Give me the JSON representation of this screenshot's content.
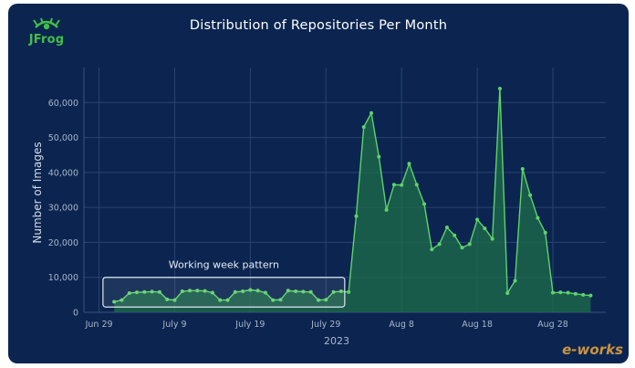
{
  "header": {
    "logo_text": "JFrog",
    "title": "Distribution of Repositories Per Month"
  },
  "watermark": {
    "text": "e-works"
  },
  "chart_data": {
    "type": "area",
    "title": "Distribution of Repositories Per Month",
    "xlabel": "2023",
    "ylabel": "Number of Images",
    "ylim": [
      0,
      70000
    ],
    "yticks": [
      0,
      10000,
      20000,
      30000,
      40000,
      50000,
      60000
    ],
    "ytick_labels": [
      "0",
      "10,000",
      "20,000",
      "30,000",
      "40,000",
      "50,000",
      "60,000"
    ],
    "xticks": [
      "2023-06-29",
      "2023-07-09",
      "2023-07-19",
      "2023-07-29",
      "2023-08-08",
      "2023-08-18",
      "2023-08-28"
    ],
    "xtick_labels": [
      "Jun 29",
      "July 9",
      "July 19",
      "July 29",
      "Aug 8",
      "Aug 18",
      "Aug 28"
    ],
    "xlim": [
      "2023-06-27",
      "2023-09-04"
    ],
    "grid": true,
    "series": [
      {
        "color": "#5fd36a",
        "x": [
          "2023-07-01",
          "2023-07-02",
          "2023-07-03",
          "2023-07-04",
          "2023-07-05",
          "2023-07-06",
          "2023-07-07",
          "2023-07-08",
          "2023-07-09",
          "2023-07-10",
          "2023-07-11",
          "2023-07-12",
          "2023-07-13",
          "2023-07-14",
          "2023-07-15",
          "2023-07-16",
          "2023-07-17",
          "2023-07-18",
          "2023-07-19",
          "2023-07-20",
          "2023-07-21",
          "2023-07-22",
          "2023-07-23",
          "2023-07-24",
          "2023-07-25",
          "2023-07-26",
          "2023-07-27",
          "2023-07-28",
          "2023-07-29",
          "2023-07-30",
          "2023-07-31",
          "2023-08-01",
          "2023-08-02",
          "2023-08-03",
          "2023-08-04",
          "2023-08-05",
          "2023-08-06",
          "2023-08-07",
          "2023-08-08",
          "2023-08-09",
          "2023-08-10",
          "2023-08-11",
          "2023-08-12",
          "2023-08-13",
          "2023-08-14",
          "2023-08-15",
          "2023-08-16",
          "2023-08-17",
          "2023-08-18",
          "2023-08-19",
          "2023-08-20",
          "2023-08-21",
          "2023-08-22",
          "2023-08-23",
          "2023-08-24",
          "2023-08-25",
          "2023-08-26",
          "2023-08-27",
          "2023-08-28",
          "2023-08-29",
          "2023-08-30",
          "2023-08-31",
          "2023-09-01",
          "2023-09-02"
        ],
        "values": [
          3000,
          3500,
          5500,
          5700,
          5800,
          5900,
          5800,
          3700,
          3500,
          6000,
          6200,
          6200,
          6100,
          5600,
          3500,
          3500,
          5800,
          6000,
          6400,
          6200,
          5600,
          3500,
          3600,
          6200,
          6000,
          5900,
          5800,
          3500,
          3600,
          5800,
          6000,
          5800,
          27500,
          53000,
          57000,
          44500,
          29300,
          36500,
          36400,
          42500,
          36500,
          31000,
          18000,
          19500,
          24300,
          22000,
          18500,
          19500,
          26500,
          24000,
          21000,
          64000,
          5500,
          9000,
          41000,
          33500,
          27000,
          22800,
          5600,
          5700,
          5600,
          5300,
          5000,
          4800
        ]
      }
    ],
    "annotations": [
      {
        "text": "Working week pattern",
        "x_start": "2023-06-30",
        "x_end": "2023-07-31",
        "y_start": 1500,
        "y_end": 10000
      }
    ]
  }
}
